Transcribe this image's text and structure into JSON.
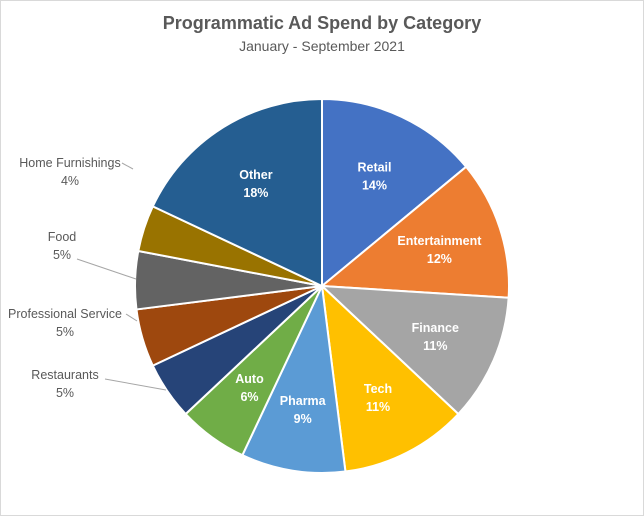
{
  "chart_data": {
    "type": "pie",
    "title": "Programmatic Ad Spend by Category",
    "subtitle": "January - September 2021",
    "slices": [
      {
        "label": "Retail",
        "value": 14,
        "display": "14%",
        "color": "#4472C4",
        "label_position": "inside"
      },
      {
        "label": "Entertainment",
        "value": 12,
        "display": "12%",
        "color": "#ED7D31",
        "label_position": "inside"
      },
      {
        "label": "Finance",
        "value": 11,
        "display": "11%",
        "color": "#A5A5A5",
        "label_position": "inside"
      },
      {
        "label": "Tech",
        "value": 11,
        "display": "11%",
        "color": "#FFC000",
        "label_position": "inside"
      },
      {
        "label": "Pharma",
        "value": 9,
        "display": "9%",
        "color": "#5B9BD5",
        "label_position": "inside"
      },
      {
        "label": "Auto",
        "value": 6,
        "display": "6%",
        "color": "#70AD47",
        "label_position": "inside"
      },
      {
        "label": "Restaurants",
        "value": 5,
        "display": "5%",
        "color": "#264478",
        "label_position": "outside"
      },
      {
        "label": "Professional Service",
        "value": 5,
        "display": "5%",
        "color": "#9E480E",
        "label_position": "outside"
      },
      {
        "label": "Food",
        "value": 5,
        "display": "5%",
        "color": "#636363",
        "label_position": "outside"
      },
      {
        "label": "Home Furnishings",
        "value": 4,
        "display": "4%",
        "color": "#997300",
        "label_position": "outside"
      },
      {
        "label": "Other",
        "value": 18,
        "display": "18%",
        "color": "#255E91",
        "label_position": "inside"
      }
    ]
  }
}
